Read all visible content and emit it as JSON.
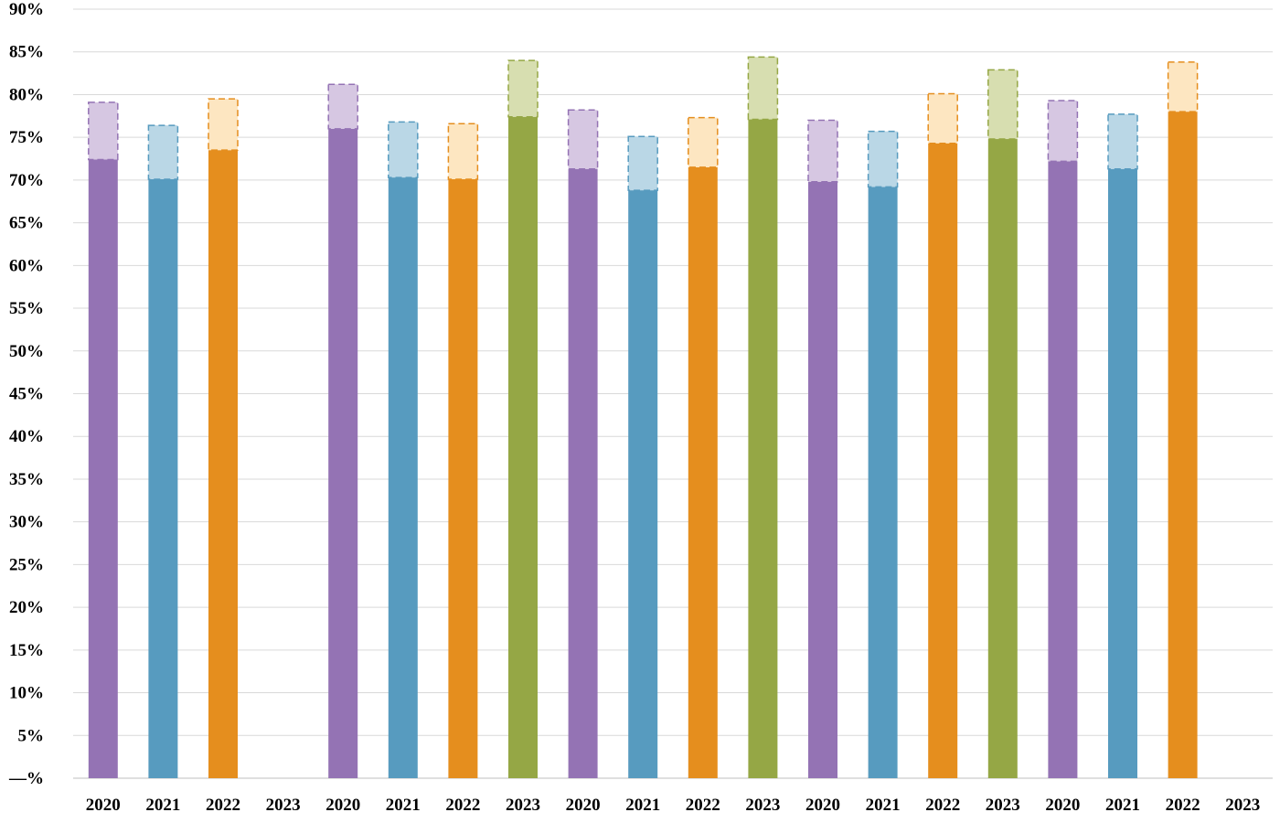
{
  "chart_data": {
    "type": "bar",
    "title": "",
    "xlabel": "",
    "ylabel": "",
    "ylim": [
      0,
      90
    ],
    "yticks": [
      0,
      5,
      10,
      15,
      20,
      25,
      30,
      35,
      40,
      45,
      50,
      55,
      60,
      65,
      70,
      75,
      80,
      85,
      90
    ],
    "ytick_labels": [
      "—%",
      "5%",
      "10%",
      "15%",
      "20%",
      "25%",
      "30%",
      "35%",
      "40%",
      "45%",
      "50%",
      "55%",
      "60%",
      "65%",
      "70%",
      "75%",
      "80%",
      "85%",
      "90%"
    ],
    "grid": true,
    "legend": "none",
    "categories": [
      "2020",
      "2021",
      "2022",
      "2023",
      "2020",
      "2021",
      "2022",
      "2023",
      "2020",
      "2021",
      "2022",
      "2023",
      "2020",
      "2021",
      "2022",
      "2023",
      "2020",
      "2021",
      "2022",
      "2023"
    ],
    "series": [
      {
        "values": [
          72.4,
          70.1,
          73.5,
          null,
          76.0,
          70.3,
          70.1,
          77.4,
          71.3,
          68.8,
          71.5,
          77.1,
          69.8,
          69.2,
          74.3,
          74.8,
          72.2,
          71.3,
          78.0,
          null
        ]
      },
      {
        "values": [
          6.7,
          6.3,
          6.0,
          null,
          5.2,
          6.5,
          6.5,
          6.6,
          6.9,
          6.3,
          5.8,
          7.3,
          7.2,
          6.5,
          5.8,
          8.1,
          7.1,
          6.4,
          5.8,
          null
        ]
      }
    ],
    "colors": {
      "2020": {
        "solid": "#9473b4",
        "light": "#d6c7e2",
        "border": "#9473b4"
      },
      "2021": {
        "solid": "#579bbf",
        "light": "#bad7e6",
        "border": "#579bbf"
      },
      "2022": {
        "solid": "#e58e1e",
        "light": "#fde6c1",
        "border": "#e58e1e"
      },
      "2023": {
        "solid": "#95a745",
        "light": "#d7deb0",
        "border": "#95a745"
      }
    }
  }
}
